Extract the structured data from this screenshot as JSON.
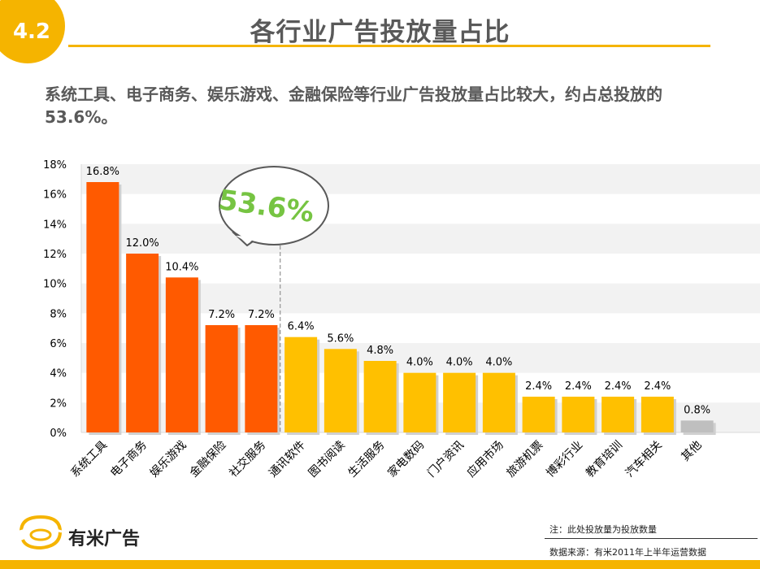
{
  "header": {
    "section_number": "4.2",
    "title": "各行业广告投放量占比"
  },
  "subtitle": "系统工具、电子商务、娱乐游戏、金融保险等行业广告投放量占比较大，约占总投放的53.6%。",
  "callout": {
    "text": "53.6%"
  },
  "footnote": "注：此处投放量为投放数量",
  "source": "数据来源：有米2011年上半年运营数据",
  "brand": {
    "name": "有米广告"
  },
  "colors": {
    "top_group": "#ff5a00",
    "other_group": "#ffc000",
    "misc": "#bfbfbf",
    "accent": "#f5b400",
    "callout_text": "#76c442"
  },
  "chart_data": {
    "type": "bar",
    "categories": [
      "系统工具",
      "电子商务",
      "娱乐游戏",
      "金融保险",
      "社交服务",
      "通讯软件",
      "图书阅读",
      "生活服务",
      "家电数码",
      "门户资讯",
      "应用市场",
      "旅游机票",
      "博彩行业",
      "教育培训",
      "汽车相关",
      "其他"
    ],
    "values": [
      16.8,
      12.0,
      10.4,
      7.2,
      7.2,
      6.4,
      5.6,
      4.8,
      4.0,
      4.0,
      4.0,
      2.4,
      2.4,
      2.4,
      2.4,
      0.8
    ],
    "data_labels": [
      "16.8%",
      "12.0%",
      "10.4%",
      "7.2%",
      "7.2%",
      "6.4%",
      "5.6%",
      "4.8%",
      "4.0%",
      "4.0%",
      "4.0%",
      "2.4%",
      "2.4%",
      "2.4%",
      "2.4%",
      "0.8%"
    ],
    "groups": [
      "top",
      "top",
      "top",
      "top",
      "top",
      "other",
      "other",
      "other",
      "other",
      "other",
      "other",
      "other",
      "other",
      "other",
      "other",
      "misc"
    ],
    "yticks": [
      "0%",
      "2%",
      "4%",
      "6%",
      "8%",
      "10%",
      "12%",
      "14%",
      "16%",
      "18%"
    ],
    "ylim": [
      0,
      18
    ],
    "xlabel": "",
    "ylabel": "",
    "grid": "alternating-bands",
    "legend": "none"
  }
}
